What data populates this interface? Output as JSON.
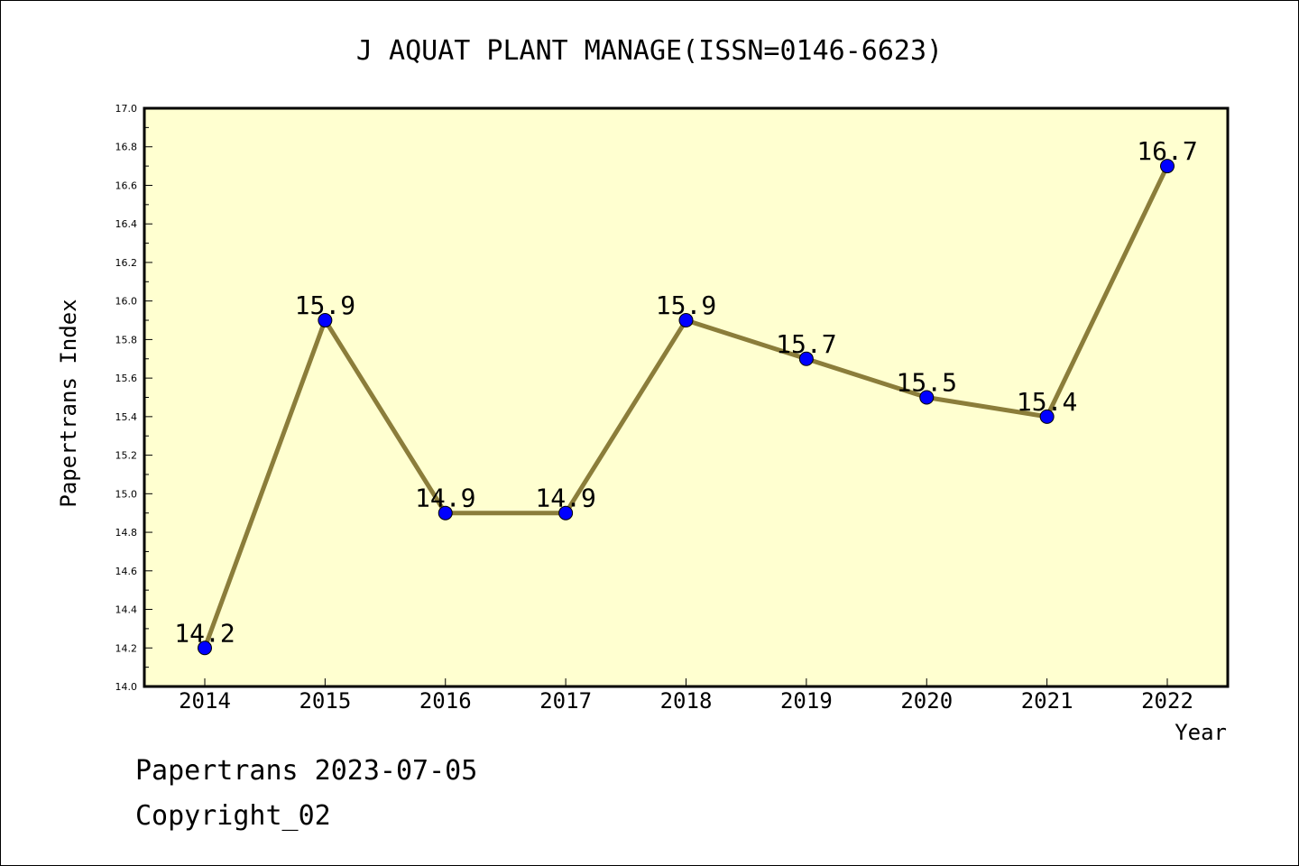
{
  "chart_data": {
    "type": "line",
    "title": "J AQUAT PLANT MANAGE(ISSN=0146-6623)",
    "xlabel": "Year",
    "ylabel": "Papertrans Index",
    "categories": [
      "2014",
      "2015",
      "2016",
      "2017",
      "2018",
      "2019",
      "2020",
      "2021",
      "2022"
    ],
    "values": [
      14.2,
      15.9,
      14.9,
      14.9,
      15.9,
      15.7,
      15.5,
      15.4,
      16.7
    ],
    "data_labels": [
      "14.2",
      "15.9",
      "14.9",
      "14.9",
      "15.9",
      "15.7",
      "15.5",
      "15.4",
      "16.7"
    ],
    "ylim": [
      14.0,
      17.0
    ],
    "yticks": [
      "14.0",
      "14.2",
      "14.4",
      "14.6",
      "14.8",
      "15.0",
      "15.2",
      "15.4",
      "15.6",
      "15.8",
      "16.0",
      "16.2",
      "16.4",
      "16.6",
      "16.8",
      "17.0"
    ],
    "grid": false,
    "colors": {
      "line": "#8B7D3A",
      "marker": "#0000FF",
      "plot_background": "#FFFFD0"
    }
  },
  "footer": {
    "line1": "Papertrans 2023-07-05",
    "line2": "Copyright_02"
  }
}
